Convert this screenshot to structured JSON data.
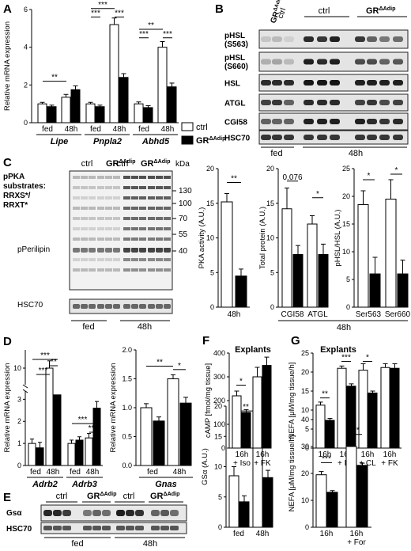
{
  "panels": {
    "A": "A",
    "B": "B",
    "C": "C",
    "D": "D",
    "E": "E",
    "F": "F",
    "G": "G"
  },
  "legend": {
    "ctrl": "ctrl",
    "gr": "GR",
    "gr_sup": "ΔAdip"
  },
  "common": {
    "fed": "fed",
    "h48": "48h",
    "kda": "kDa"
  },
  "blot_B": {
    "ctrl": "ctrl",
    "gr": "GR",
    "gr_sup": "ΔAdip",
    "rows": [
      "pHSL (S563)",
      "pHSL (S660)",
      "HSL",
      "ATGL",
      "CGI58",
      "HSC70"
    ],
    "row_l1": [
      "pHSL",
      "pHSL",
      "HSL",
      "ATGL",
      "CGI58",
      "HSC70"
    ],
    "row_l2": [
      "(S563)",
      "(S660)",
      "",
      "",
      "",
      ""
    ],
    "fed": "fed",
    "h48": "48h"
  },
  "blot_C": {
    "ctrl": "ctrl",
    "gr": "GR",
    "gr_sup": "ΔAdip",
    "kda": "kDa",
    "label_lines": [
      "pPKA",
      "substrates:",
      "RRXS*/",
      "RRXT*"
    ],
    "pperilipin": "pPerilipin",
    "hsc70": "HSC70",
    "markers": [
      "130",
      "100",
      "70",
      "55",
      "40"
    ],
    "fed": "fed",
    "h48": "48h"
  },
  "blot_E": {
    "ctrl": "ctrl",
    "gr": "GR",
    "gr_sup": "ΔAdip",
    "rows": [
      "Gsα",
      "HSC70"
    ],
    "fed": "fed",
    "h48": "48h"
  },
  "F_head": "Explants",
  "G_head": "Explants",
  "C_group_label": "48h",
  "chart_data": [
    {
      "id": "A",
      "type": "bar",
      "ylabel": "Relative mRNA expression",
      "ylim": [
        0,
        6
      ],
      "yticks": [
        "0",
        "2",
        "4",
        "6"
      ],
      "groups": [
        "Lipe",
        "Pnpla2",
        "Abhd5"
      ],
      "conditions": [
        "fed",
        "48h"
      ],
      "series": [
        {
          "name": "ctrl",
          "values": [
            1.0,
            1.35,
            1.0,
            5.2,
            1.0,
            4.0
          ],
          "errors": [
            0.08,
            0.15,
            0.08,
            0.35,
            0.1,
            0.3
          ]
        },
        {
          "name": "GRΔAdip",
          "values": [
            0.85,
            1.75,
            0.85,
            2.4,
            0.8,
            1.9
          ],
          "errors": [
            0.08,
            0.2,
            0.08,
            0.2,
            0.1,
            0.2
          ]
        }
      ],
      "significance": [
        "**",
        "***",
        "***",
        "***",
        "**",
        "***",
        "***"
      ]
    },
    {
      "id": "C1",
      "type": "bar",
      "ylabel": "PKA activity (A.U.)",
      "ylim": [
        0,
        20
      ],
      "yticks": [
        "0",
        "5",
        "10",
        "15",
        "20"
      ],
      "categories": [
        "48h"
      ],
      "series": [
        {
          "name": "ctrl",
          "values": [
            15.2
          ],
          "errors": [
            1.2
          ]
        },
        {
          "name": "GRΔAdip",
          "values": [
            4.5
          ],
          "errors": [
            1.0
          ]
        }
      ],
      "significance": [
        "**"
      ]
    },
    {
      "id": "C2",
      "type": "bar",
      "ylabel": "Total protein (A.U.)",
      "ylim": [
        0,
        20
      ],
      "yticks": [
        "0",
        "5",
        "10",
        "15",
        "20"
      ],
      "categories": [
        "CGI58",
        "ATGL"
      ],
      "series": [
        {
          "name": "ctrl",
          "values": [
            14.2,
            12.0
          ],
          "errors": [
            3.0,
            1.2
          ]
        },
        {
          "name": "GRΔAdip",
          "values": [
            7.6,
            7.6
          ],
          "errors": [
            1.3,
            1.5
          ]
        }
      ],
      "significance": [
        "0.076",
        "*"
      ]
    },
    {
      "id": "C3",
      "type": "bar",
      "ylabel": "pHSL/HSL (A.U.)",
      "ylim": [
        0,
        25
      ],
      "yticks": [
        "0",
        "5",
        "10",
        "15",
        "20",
        "25"
      ],
      "categories": [
        "Ser563",
        "Ser660"
      ],
      "series": [
        {
          "name": "ctrl",
          "values": [
            18.5,
            19.5
          ],
          "errors": [
            2.5,
            3.5
          ]
        },
        {
          "name": "GRΔAdip",
          "values": [
            6.0,
            6.0
          ],
          "errors": [
            3.0,
            2.5
          ]
        }
      ],
      "significance": [
        "*",
        "*"
      ]
    },
    {
      "id": "D1",
      "type": "bar",
      "ylabel": "Relative mRNA expression",
      "ylim": [
        0,
        12
      ],
      "ybreak": true,
      "yticks": [
        "0",
        "1",
        "2",
        "3",
        "10"
      ],
      "groups": [
        "Adrb2",
        "Adrb3"
      ],
      "conditions": [
        "fed",
        "48h"
      ],
      "series": [
        {
          "name": "ctrl",
          "values": [
            1.0,
            10.0,
            1.0,
            1.25
          ],
          "errors": [
            0.2,
            0.8,
            0.15,
            0.2
          ]
        },
        {
          "name": "GRΔAdip",
          "values": [
            0.8,
            3.2,
            1.15,
            2.6
          ],
          "errors": [
            0.25,
            0.15,
            0.15,
            0.3
          ]
        }
      ],
      "significance": [
        "***",
        "**",
        "***",
        "***",
        "**"
      ]
    },
    {
      "id": "D2",
      "type": "bar",
      "ylabel": "Relative mRNA expression",
      "ylim": [
        0,
        2.0
      ],
      "yticks": [
        "0.0",
        "0.5",
        "1.0",
        "1.5",
        "2.0"
      ],
      "groups": [
        "Gnas"
      ],
      "conditions": [
        "fed",
        "48h"
      ],
      "series": [
        {
          "name": "ctrl",
          "values": [
            1.0,
            1.5
          ],
          "errors": [
            0.07,
            0.07
          ]
        },
        {
          "name": "GRΔAdip",
          "values": [
            0.77,
            1.08
          ],
          "errors": [
            0.07,
            0.1
          ]
        }
      ],
      "significance": [
        "**",
        "*"
      ]
    },
    {
      "id": "E1",
      "type": "bar",
      "ylabel": "GSα (A.U.)",
      "ylim": [
        0,
        20
      ],
      "yticks": [
        "0",
        "5",
        "10",
        "15",
        "20"
      ],
      "categories": [
        "fed",
        "48h"
      ],
      "series": [
        {
          "name": "ctrl",
          "values": [
            8.5,
            15.2
          ],
          "errors": [
            1.5,
            1.2
          ]
        },
        {
          "name": "GRΔAdip",
          "values": [
            4.2,
            8.2
          ],
          "errors": [
            1.0,
            1.2
          ]
        }
      ],
      "significance": [
        "**",
        "*"
      ]
    },
    {
      "id": "F1",
      "type": "bar",
      "ylabel": "cAMP [fmol/mg tissue]",
      "ylim": [
        0,
        400
      ],
      "yticks": [
        "0",
        "100",
        "200",
        "300",
        "400"
      ],
      "categories": [
        "16h\n+ Iso",
        "16h\n+ FK"
      ],
      "series": [
        {
          "name": "ctrl",
          "values": [
            220,
            300
          ],
          "errors": [
            20,
            40
          ]
        },
        {
          "name": "GRΔAdip",
          "values": [
            150,
            348
          ],
          "errors": [
            12,
            35
          ]
        }
      ],
      "significance": [
        "*"
      ]
    },
    {
      "id": "G1",
      "type": "bar",
      "ylabel": "NEFA [μM/mg tissue/h]",
      "ylim": [
        0,
        25
      ],
      "yticks": [
        "0",
        "5",
        "10",
        "15",
        "20",
        "25"
      ],
      "categories": [
        "16h",
        "16h\n+ Iso",
        "16h\n+ CL",
        "16h\n+ FK"
      ],
      "series": [
        {
          "name": "ctrl",
          "values": [
            11.3,
            21.0,
            20.5,
            21.2
          ],
          "errors": [
            0.8,
            0.6,
            1.7,
            1.0
          ]
        },
        {
          "name": "GRΔAdip",
          "values": [
            7.3,
            16.3,
            14.5,
            21.0
          ],
          "errors": [
            0.5,
            0.6,
            0.5,
            1.2
          ]
        }
      ],
      "significance": [
        "**",
        "***",
        "*"
      ]
    },
    {
      "id": "G2",
      "type": "bar",
      "ylabel": "NEFA [μM/mg tissue/h]",
      "ylim": [
        0,
        40
      ],
      "yticks": [
        "0",
        "10",
        "20",
        "30",
        "40"
      ],
      "categories": [
        "16h",
        "16h\n+ For"
      ],
      "series": [
        {
          "name": "ctrl",
          "values": [
            19.5,
            30.0
          ],
          "errors": [
            1.2,
            1.2
          ]
        },
        {
          "name": "GRΔAdip",
          "values": [
            13.0,
            23.0
          ],
          "errors": [
            0.6,
            0.8
          ]
        }
      ],
      "significance": [
        "***",
        "**"
      ]
    }
  ]
}
